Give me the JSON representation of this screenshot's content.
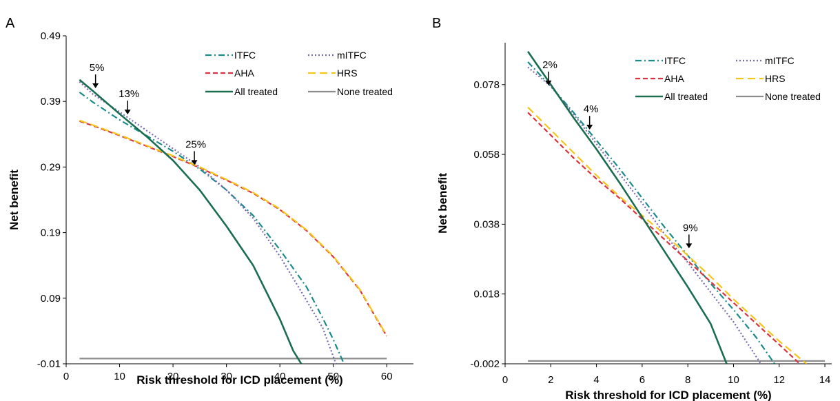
{
  "chart_data": [
    {
      "type": "line",
      "panel": "A",
      "title": "",
      "xlabel": "Risk threshold for ICD placement (%)",
      "ylabel": "Net benefit",
      "xlim": [
        0,
        65
      ],
      "ylim": [
        -0.01,
        0.49
      ],
      "xticks": [
        0,
        10,
        20,
        30,
        40,
        50,
        60
      ],
      "yticks": [
        -0.01,
        0.09,
        0.19,
        0.29,
        0.39,
        0.49
      ],
      "ytick_labels": [
        "-0.01",
        "0.09",
        "0.19",
        "0.29",
        "0.39",
        "0.49"
      ],
      "grid": false,
      "legend_position": "top-right",
      "series": [
        {
          "name": "ITFC",
          "color": "#1a8a8a",
          "dash": "dashdot",
          "points": [
            [
              2.5,
              0.404
            ],
            [
              5,
              0.389
            ],
            [
              10,
              0.362
            ],
            [
              15,
              0.338
            ],
            [
              20,
              0.314
            ],
            [
              25,
              0.287
            ],
            [
              30,
              0.255
            ],
            [
              35,
              0.216
            ],
            [
              40,
              0.164
            ],
            [
              45,
              0.107
            ],
            [
              48,
              0.06
            ],
            [
              50,
              0.027
            ],
            [
              52,
              -0.01
            ]
          ]
        },
        {
          "name": "mITFC",
          "color": "#7a68b0",
          "dash": "dotted",
          "points": [
            [
              2.5,
              0.42
            ],
            [
              5,
              0.401
            ],
            [
              10,
              0.374
            ],
            [
              15,
              0.346
            ],
            [
              20,
              0.318
            ],
            [
              25,
              0.29
            ],
            [
              30,
              0.255
            ],
            [
              35,
              0.212
            ],
            [
              40,
              0.154
            ],
            [
              44,
              0.1
            ],
            [
              48,
              0.045
            ],
            [
              50.5,
              -0.01
            ]
          ]
        },
        {
          "name": "AHA",
          "color": "#d9333f",
          "dash": "dashed",
          "points": [
            [
              2.5,
              0.36
            ],
            [
              5,
              0.353
            ],
            [
              10,
              0.338
            ],
            [
              15,
              0.322
            ],
            [
              20,
              0.306
            ],
            [
              25,
              0.289
            ],
            [
              30,
              0.27
            ],
            [
              35,
              0.25
            ],
            [
              40,
              0.225
            ],
            [
              45,
              0.193
            ],
            [
              50,
              0.153
            ],
            [
              55,
              0.102
            ],
            [
              60,
              0.032
            ]
          ]
        },
        {
          "name": "HRS",
          "color": "#f5c518",
          "dash": "longdash",
          "points": [
            [
              2.5,
              0.361
            ],
            [
              5,
              0.354
            ],
            [
              10,
              0.339
            ],
            [
              15,
              0.323
            ],
            [
              20,
              0.307
            ],
            [
              25,
              0.29
            ],
            [
              30,
              0.271
            ],
            [
              35,
              0.251
            ],
            [
              40,
              0.226
            ],
            [
              45,
              0.194
            ],
            [
              50,
              0.154
            ],
            [
              55,
              0.103
            ],
            [
              60,
              0.033
            ]
          ]
        },
        {
          "name": "All treated",
          "color": "#1a6e4f",
          "dash": "solid",
          "points": [
            [
              2.5,
              0.423
            ],
            [
              5,
              0.406
            ],
            [
              10,
              0.371
            ],
            [
              15,
              0.337
            ],
            [
              20,
              0.3
            ],
            [
              25,
              0.255
            ],
            [
              30,
              0.2
            ],
            [
              35,
              0.14
            ],
            [
              40,
              0.058
            ],
            [
              42.5,
              0.01
            ],
            [
              44,
              -0.01
            ]
          ]
        },
        {
          "name": "None treated",
          "color": "#8c8c8c",
          "dash": "solid",
          "points": [
            [
              2.5,
              -0.002
            ],
            [
              60,
              -0.002
            ]
          ]
        }
      ],
      "annotations": [
        {
          "label": "5%",
          "x": 5.5,
          "y": 0.407
        },
        {
          "label": "13%",
          "x": 11.5,
          "y": 0.367
        },
        {
          "label": "25%",
          "x": 24,
          "y": 0.29
        }
      ]
    },
    {
      "type": "line",
      "panel": "B",
      "title": "",
      "xlabel": "Risk threshold for ICD placement (%)",
      "ylabel": "Net benefit",
      "xlim": [
        0,
        14.3
      ],
      "ylim": [
        -0.002,
        0.09
      ],
      "xticks": [
        0,
        2,
        4,
        6,
        8,
        10,
        12,
        14
      ],
      "yticks": [
        -0.002,
        0.018,
        0.038,
        0.058,
        0.078
      ],
      "ytick_labels": [
        "-0.002",
        "0.018",
        "0.038",
        "0.058",
        "0.078"
      ],
      "grid": false,
      "legend_position": "top-right",
      "series": [
        {
          "name": "ITFC",
          "color": "#1a8a8a",
          "dash": "dashdot",
          "points": [
            [
              1,
              0.0845
            ],
            [
              2,
              0.0775
            ],
            [
              3,
              0.07
            ],
            [
              4,
              0.062
            ],
            [
              5,
              0.054
            ],
            [
              6,
              0.0455
            ],
            [
              7,
              0.037
            ],
            [
              8,
              0.029
            ],
            [
              9,
              0.021
            ],
            [
              10,
              0.0135
            ],
            [
              11,
              0.0055
            ],
            [
              11.8,
              -0.002
            ]
          ]
        },
        {
          "name": "mITFC",
          "color": "#7a68b0",
          "dash": "dotted",
          "points": [
            [
              1,
              0.083
            ],
            [
              2,
              0.0775
            ],
            [
              3,
              0.0695
            ],
            [
              4,
              0.061
            ],
            [
              5,
              0.0525
            ],
            [
              6,
              0.044
            ],
            [
              7,
              0.035
            ],
            [
              8,
              0.027
            ],
            [
              9,
              0.0185
            ],
            [
              10,
              0.01
            ],
            [
              11.2,
              -0.002
            ]
          ]
        },
        {
          "name": "AHA",
          "color": "#d9333f",
          "dash": "dashed",
          "points": [
            [
              1,
              0.07
            ],
            [
              2,
              0.0635
            ],
            [
              3,
              0.057
            ],
            [
              4,
              0.051
            ],
            [
              5,
              0.0455
            ],
            [
              6,
              0.0395
            ],
            [
              7,
              0.0335
            ],
            [
              8,
              0.0275
            ],
            [
              9,
              0.0215
            ],
            [
              10,
              0.0155
            ],
            [
              11,
              0.0095
            ],
            [
              12,
              0.0035
            ],
            [
              12.9,
              -0.002
            ]
          ]
        },
        {
          "name": "HRS",
          "color": "#f5c518",
          "dash": "longdash",
          "points": [
            [
              1,
              0.0715
            ],
            [
              2,
              0.065
            ],
            [
              3,
              0.0585
            ],
            [
              4,
              0.052
            ],
            [
              5,
              0.046
            ],
            [
              6,
              0.0405
            ],
            [
              7,
              0.035
            ],
            [
              8,
              0.029
            ],
            [
              9,
              0.023
            ],
            [
              10,
              0.0165
            ],
            [
              11,
              0.0105
            ],
            [
              12,
              0.0045
            ],
            [
              13.2,
              -0.002
            ]
          ]
        },
        {
          "name": "All treated",
          "color": "#1a6e4f",
          "dash": "solid",
          "points": [
            [
              1,
              0.0875
            ],
            [
              2,
              0.078
            ],
            [
              3,
              0.0685
            ],
            [
              4,
              0.0595
            ],
            [
              5,
              0.05
            ],
            [
              6,
              0.04
            ],
            [
              7,
              0.03
            ],
            [
              8,
              0.02
            ],
            [
              9,
              0.0095
            ],
            [
              9.7,
              -0.002
            ]
          ]
        },
        {
          "name": "None treated",
          "color": "#8c8c8c",
          "dash": "solid",
          "points": [
            [
              1,
              -0.0012
            ],
            [
              14,
              -0.0012
            ]
          ]
        }
      ],
      "annotations": [
        {
          "label": "2%",
          "x": 1.9,
          "y": 0.0772
        },
        {
          "label": "4%",
          "x": 3.7,
          "y": 0.0645
        },
        {
          "label": "9%",
          "x": 8.05,
          "y": 0.0305
        }
      ]
    }
  ]
}
